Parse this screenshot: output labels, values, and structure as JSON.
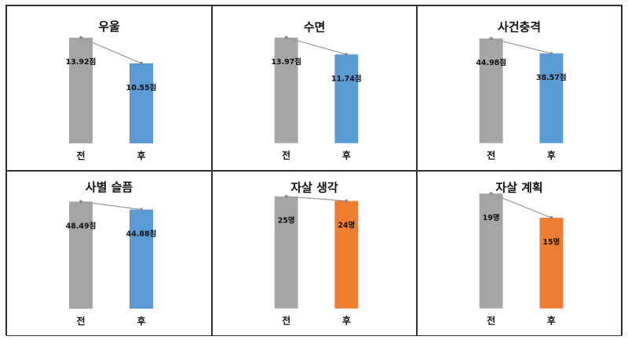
{
  "colors": {
    "before": "#a5a5a5",
    "after_blue": "#5b9bd5",
    "after_orange": "#ed7d31",
    "line": "#9a9a9a"
  },
  "chart_data": [
    {
      "type": "bar",
      "title": "우울",
      "categories": [
        "전",
        "후"
      ],
      "values": [
        13.92,
        10.55
      ],
      "labels": [
        "13.92점",
        "10.55점"
      ],
      "ylim": [
        0,
        16
      ],
      "after_color": "blue"
    },
    {
      "type": "bar",
      "title": "수면",
      "categories": [
        "전",
        "후"
      ],
      "values": [
        13.97,
        11.74
      ],
      "labels": [
        "13.97점",
        "11.74점"
      ],
      "ylim": [
        0,
        16
      ],
      "after_color": "blue"
    },
    {
      "type": "bar",
      "title": "사건충격",
      "categories": [
        "전",
        "후"
      ],
      "values": [
        44.98,
        38.57
      ],
      "labels": [
        "44.98점",
        "38.57점"
      ],
      "ylim": [
        0,
        52
      ],
      "after_color": "blue"
    },
    {
      "type": "bar",
      "title": "사별 슬픔",
      "categories": [
        "전",
        "후"
      ],
      "values": [
        48.49,
        44.88
      ],
      "labels": [
        "48.49점",
        "44.88점"
      ],
      "ylim": [
        0,
        55
      ],
      "after_color": "blue"
    },
    {
      "type": "bar",
      "title": "자살 생각",
      "categories": [
        "전",
        "후"
      ],
      "values": [
        25,
        24
      ],
      "labels": [
        "25명",
        "24명"
      ],
      "ylim": [
        0,
        27
      ],
      "after_color": "orange"
    },
    {
      "type": "bar",
      "title": "자살 계획",
      "categories": [
        "전",
        "후"
      ],
      "values": [
        19,
        15
      ],
      "labels": [
        "19명",
        "15명"
      ],
      "ylim": [
        0,
        20
      ],
      "after_color": "orange"
    }
  ]
}
